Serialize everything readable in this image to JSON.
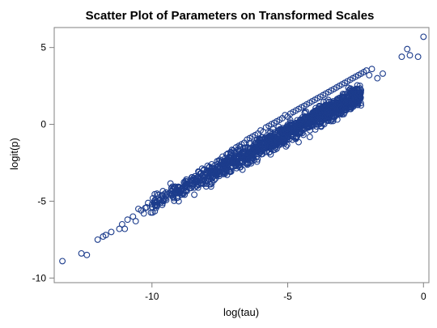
{
  "chart_data": {
    "type": "scatter",
    "title": "Scatter Plot of Parameters on Transformed Scales",
    "xlabel": "log(tau)",
    "ylabel": "logit(p)",
    "xlim": [
      -13.6,
      0.2
    ],
    "ylim": [
      -10.3,
      6.3
    ],
    "x_ticks": [
      -10,
      -5,
      0
    ],
    "x_tick_labels": [
      "-10",
      "-5",
      "0"
    ],
    "y_ticks": [
      -10,
      -5,
      0,
      5
    ],
    "y_tick_labels": [
      "-10",
      "-5",
      "0",
      "5"
    ],
    "grid": false,
    "legend": "none",
    "marker": "open-circle",
    "marker_color": "#1c3c8c",
    "series": [
      {
        "points_note_sample": true,
        "x": [
          -13.3,
          -12.6,
          -12.4,
          -12.0,
          -11.8,
          -11.7,
          -11.5,
          -11.2,
          -11.1,
          -11.0,
          -10.9,
          -10.7,
          -10.6,
          -10.5,
          -10.4,
          -10.3,
          -10.2,
          -10.0,
          -9.9,
          -9.8,
          -9.7,
          -9.6,
          -9.5,
          -9.3,
          -9.2,
          -9.1,
          -9.0,
          -8.9,
          -8.8,
          -8.7,
          -8.6,
          -8.5,
          -8.4,
          -8.3,
          -8.2,
          -8.1,
          -8.0,
          -7.9,
          -7.8,
          -7.7,
          -7.6,
          -7.5,
          -7.4,
          -7.3,
          -7.2,
          -7.1,
          -7.0,
          -6.9,
          -6.8,
          -6.7,
          -6.6,
          -6.5,
          -6.4,
          -6.3,
          -6.2,
          -6.1,
          -6.0,
          -5.9,
          -5.8,
          -5.7,
          -5.6,
          -5.5,
          -5.4,
          -5.3,
          -5.2,
          -5.1,
          -5.0,
          -4.9,
          -4.8,
          -4.7,
          -4.6,
          -4.5,
          -4.4,
          -4.3,
          -4.2,
          -4.1,
          -4.0,
          -3.9,
          -3.8,
          -3.7,
          -3.6,
          -3.5,
          -3.4,
          -3.3,
          -3.2,
          -3.1,
          -3.0,
          -2.9,
          -2.8,
          -2.7,
          -2.6,
          -2.5,
          -2.4,
          -2.3,
          -2.2,
          -2.1,
          -2.0,
          -1.9,
          -1.7,
          -1.5,
          -0.8,
          -0.6,
          -0.5,
          -0.2,
          0.0
        ],
        "y": [
          -8.9,
          -8.4,
          -8.5,
          -7.5,
          -7.3,
          -7.2,
          -7.0,
          -6.8,
          -6.5,
          -6.8,
          -6.2,
          -6.0,
          -6.3,
          -5.5,
          -5.6,
          -5.8,
          -5.4,
          -5.2,
          -5.0,
          -5.3,
          -4.9,
          -5.0,
          -4.7,
          -4.5,
          -4.8,
          -4.4,
          -4.3,
          -4.2,
          -4.0,
          -3.9,
          -3.8,
          -3.6,
          -3.5,
          -3.4,
          -3.2,
          -3.0,
          -3.1,
          -2.8,
          -2.6,
          -2.7,
          -2.4,
          -2.3,
          -2.1,
          -2.2,
          -1.9,
          -1.8,
          -1.7,
          -1.5,
          -1.4,
          -1.3,
          -1.2,
          -1.0,
          -0.9,
          -0.8,
          -0.7,
          -0.6,
          -0.4,
          -0.5,
          -0.2,
          -0.1,
          0.0,
          0.1,
          0.2,
          0.3,
          0.4,
          0.6,
          0.5,
          0.7,
          0.8,
          0.9,
          1.0,
          1.1,
          1.2,
          1.3,
          1.4,
          1.5,
          1.6,
          1.7,
          1.8,
          1.9,
          2.0,
          2.1,
          2.2,
          2.3,
          2.4,
          2.5,
          2.6,
          2.7,
          2.8,
          2.9,
          3.0,
          3.1,
          3.2,
          3.3,
          3.4,
          3.5,
          3.2,
          3.6,
          3.0,
          3.3,
          4.4,
          4.9,
          4.5,
          4.4,
          5.7
        ]
      }
    ],
    "cloud": {
      "slope": 0.93,
      "intercept": 4.1,
      "x_min": -10.3,
      "x_max": -2.3,
      "n": 1400,
      "spread": 0.32
    }
  }
}
